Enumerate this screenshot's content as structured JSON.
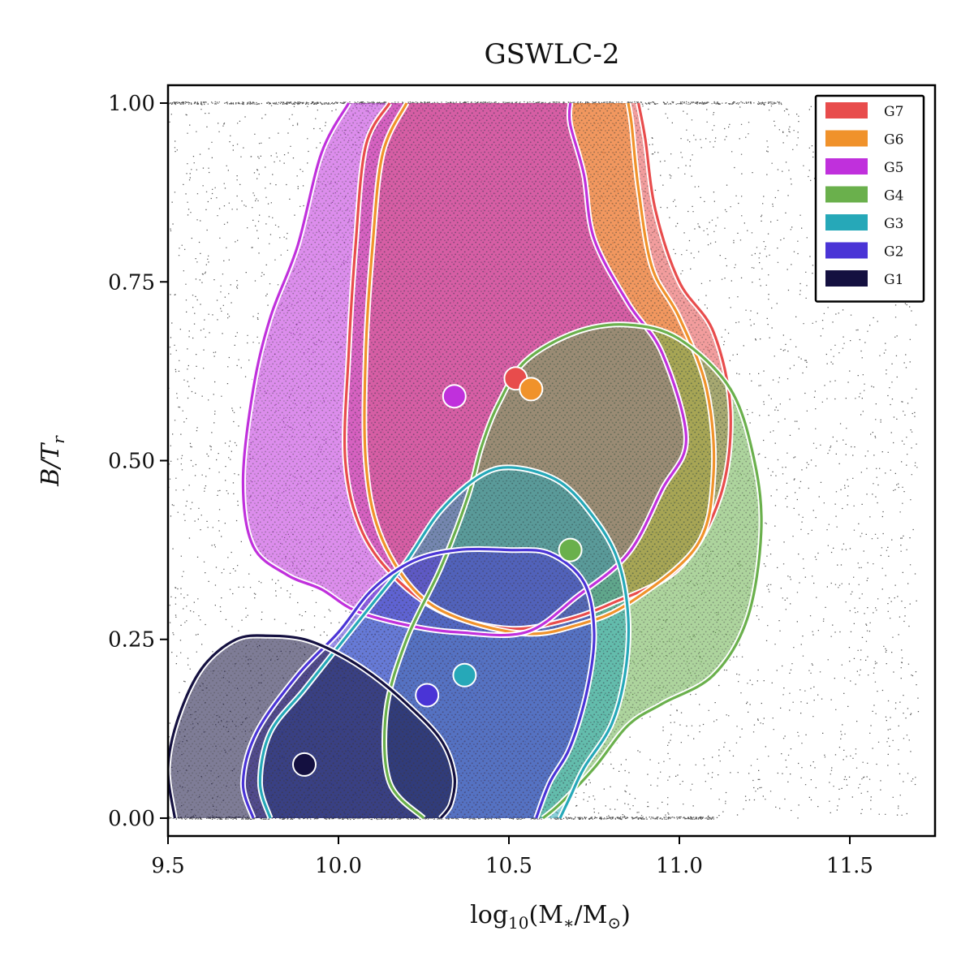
{
  "chart_data": {
    "type": "scatter",
    "title": "GSWLC-2",
    "xlabel_base": "log",
    "xlabel_sub": "10",
    "xlabel_expr": "(M",
    "xlabel_star": "∗",
    "xlabel_slash": "/M",
    "xlabel_sun": "⊙",
    "xlabel_close": ")",
    "ylabel_main": "B/T",
    "ylabel_sub": "r",
    "xlim": [
      9.5,
      11.75
    ],
    "ylim": [
      -0.025,
      1.025
    ],
    "x_ticks": [
      9.5,
      10.0,
      10.5,
      11.0,
      11.5
    ],
    "x_tick_labels": [
      "9.5",
      "10.0",
      "10.5",
      "11.0",
      "11.5"
    ],
    "y_ticks": [
      0.0,
      0.25,
      0.5,
      0.75,
      1.0
    ],
    "y_tick_labels": [
      "0.00",
      "0.25",
      "0.50",
      "0.75",
      "1.00"
    ],
    "legend_position": "top-right",
    "background_points_color": "#555555",
    "series": [
      {
        "name": "G7",
        "color": "#e84c4c",
        "centroid": [
          10.52,
          0.615
        ],
        "contour": [
          [
            10.15,
            1.0
          ],
          [
            10.08,
            0.94
          ],
          [
            10.05,
            0.8
          ],
          [
            10.03,
            0.65
          ],
          [
            10.02,
            0.5
          ],
          [
            10.07,
            0.4
          ],
          [
            10.18,
            0.33
          ],
          [
            10.32,
            0.285
          ],
          [
            10.5,
            0.265
          ],
          [
            10.65,
            0.275
          ],
          [
            10.8,
            0.3
          ],
          [
            11.0,
            0.35
          ],
          [
            11.12,
            0.45
          ],
          [
            11.15,
            0.57
          ],
          [
            11.1,
            0.68
          ],
          [
            11.0,
            0.75
          ],
          [
            10.93,
            0.85
          ],
          [
            10.9,
            0.95
          ],
          [
            10.88,
            1.0
          ]
        ]
      },
      {
        "name": "G6",
        "color": "#f0922b",
        "centroid": [
          10.565,
          0.6
        ],
        "contour": [
          [
            10.2,
            1.0
          ],
          [
            10.13,
            0.93
          ],
          [
            10.1,
            0.8
          ],
          [
            10.08,
            0.65
          ],
          [
            10.08,
            0.5
          ],
          [
            10.12,
            0.4
          ],
          [
            10.22,
            0.32
          ],
          [
            10.35,
            0.28
          ],
          [
            10.55,
            0.258
          ],
          [
            10.7,
            0.27
          ],
          [
            10.85,
            0.3
          ],
          [
            11.05,
            0.38
          ],
          [
            11.1,
            0.48
          ],
          [
            11.08,
            0.6
          ],
          [
            11.0,
            0.7
          ],
          [
            10.92,
            0.77
          ],
          [
            10.88,
            0.88
          ],
          [
            10.86,
            0.97
          ],
          [
            10.85,
            1.0
          ]
        ]
      },
      {
        "name": "G5",
        "color": "#c030dc",
        "centroid": [
          10.34,
          0.59
        ],
        "contour": [
          [
            10.03,
            1.0
          ],
          [
            9.95,
            0.93
          ],
          [
            9.88,
            0.8
          ],
          [
            9.8,
            0.7
          ],
          [
            9.75,
            0.6
          ],
          [
            9.72,
            0.47
          ],
          [
            9.75,
            0.38
          ],
          [
            9.85,
            0.34
          ],
          [
            9.95,
            0.32
          ],
          [
            10.05,
            0.29
          ],
          [
            10.2,
            0.27
          ],
          [
            10.35,
            0.26
          ],
          [
            10.55,
            0.26
          ],
          [
            10.7,
            0.31
          ],
          [
            10.85,
            0.37
          ],
          [
            10.95,
            0.46
          ],
          [
            11.02,
            0.53
          ],
          [
            10.95,
            0.65
          ],
          [
            10.85,
            0.72
          ],
          [
            10.75,
            0.81
          ],
          [
            10.72,
            0.9
          ],
          [
            10.68,
            0.97
          ],
          [
            10.68,
            1.0
          ]
        ]
      },
      {
        "name": "G4",
        "color": "#6ab04c",
        "centroid": [
          10.68,
          0.375
        ],
        "contour": [
          [
            10.25,
            0.0
          ],
          [
            10.15,
            0.05
          ],
          [
            10.14,
            0.15
          ],
          [
            10.2,
            0.25
          ],
          [
            10.3,
            0.35
          ],
          [
            10.38,
            0.45
          ],
          [
            10.42,
            0.52
          ],
          [
            10.47,
            0.58
          ],
          [
            10.55,
            0.64
          ],
          [
            10.7,
            0.68
          ],
          [
            10.85,
            0.69
          ],
          [
            11.0,
            0.67
          ],
          [
            11.15,
            0.6
          ],
          [
            11.22,
            0.5
          ],
          [
            11.24,
            0.4
          ],
          [
            11.2,
            0.28
          ],
          [
            11.1,
            0.2
          ],
          [
            10.95,
            0.16
          ],
          [
            10.85,
            0.13
          ],
          [
            10.75,
            0.07
          ],
          [
            10.65,
            0.02
          ],
          [
            10.6,
            0.0
          ]
        ]
      },
      {
        "name": "G3",
        "color": "#26a8b8",
        "centroid": [
          10.37,
          0.2
        ],
        "contour": [
          [
            9.8,
            0.0
          ],
          [
            9.77,
            0.05
          ],
          [
            9.8,
            0.12
          ],
          [
            9.9,
            0.18
          ],
          [
            10.0,
            0.24
          ],
          [
            10.1,
            0.3
          ],
          [
            10.2,
            0.36
          ],
          [
            10.3,
            0.43
          ],
          [
            10.42,
            0.48
          ],
          [
            10.52,
            0.49
          ],
          [
            10.65,
            0.47
          ],
          [
            10.75,
            0.42
          ],
          [
            10.82,
            0.36
          ],
          [
            10.85,
            0.28
          ],
          [
            10.84,
            0.2
          ],
          [
            10.8,
            0.13
          ],
          [
            10.72,
            0.07
          ],
          [
            10.68,
            0.03
          ],
          [
            10.65,
            0.0
          ]
        ]
      },
      {
        "name": "G2",
        "color": "#4a34d6",
        "centroid": [
          10.26,
          0.172
        ],
        "contour": [
          [
            9.75,
            0.0
          ],
          [
            9.72,
            0.05
          ],
          [
            9.76,
            0.12
          ],
          [
            9.88,
            0.2
          ],
          [
            10.0,
            0.26
          ],
          [
            10.1,
            0.32
          ],
          [
            10.22,
            0.36
          ],
          [
            10.35,
            0.375
          ],
          [
            10.5,
            0.375
          ],
          [
            10.62,
            0.37
          ],
          [
            10.72,
            0.33
          ],
          [
            10.75,
            0.26
          ],
          [
            10.73,
            0.18
          ],
          [
            10.68,
            0.1
          ],
          [
            10.62,
            0.05
          ],
          [
            10.58,
            0.0
          ]
        ]
      },
      {
        "name": "G1",
        "color": "#141040",
        "centroid": [
          9.9,
          0.075
        ],
        "contour": [
          [
            9.52,
            0.0
          ],
          [
            9.5,
            0.07
          ],
          [
            9.53,
            0.14
          ],
          [
            9.6,
            0.21
          ],
          [
            9.7,
            0.25
          ],
          [
            9.8,
            0.255
          ],
          [
            9.9,
            0.25
          ],
          [
            10.0,
            0.23
          ],
          [
            10.1,
            0.2
          ],
          [
            10.2,
            0.16
          ],
          [
            10.3,
            0.11
          ],
          [
            10.34,
            0.06
          ],
          [
            10.33,
            0.02
          ],
          [
            10.3,
            0.0
          ]
        ]
      }
    ]
  }
}
